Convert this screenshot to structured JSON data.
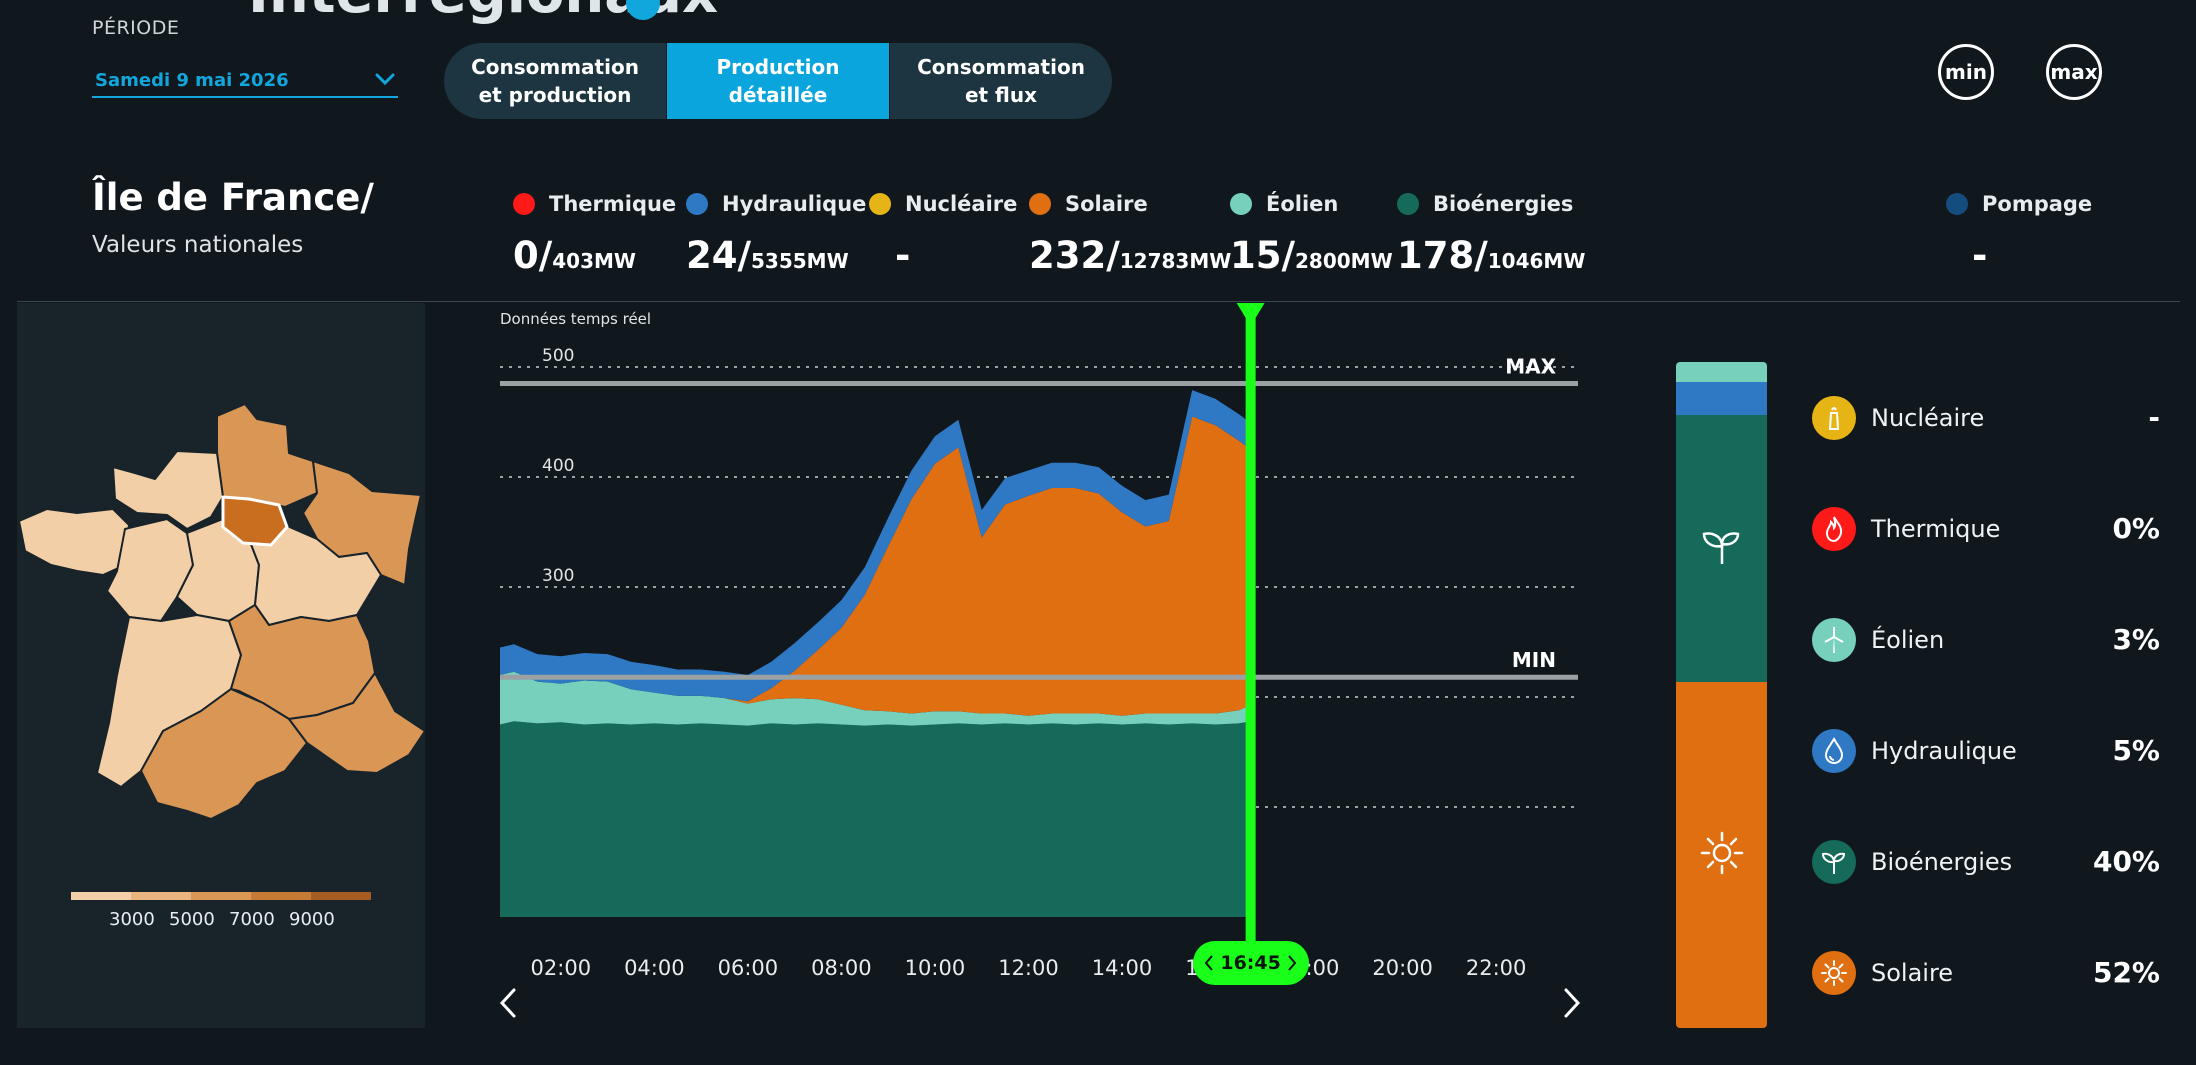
{
  "header": {
    "title": "Interrégionaux",
    "periode_label": "PÉRIODE",
    "date_value": "Samedi 9 mai 2026",
    "tabs": [
      {
        "label": "Consommation et production",
        "active": false
      },
      {
        "label": "Production détaillée",
        "active": true
      },
      {
        "label": "Consommation et flux",
        "active": false
      }
    ],
    "min_button": "min",
    "max_button": "max"
  },
  "region": {
    "name": "Île de France/",
    "subtitle": "Valeurs nationales"
  },
  "stats": [
    {
      "label": "Thermique",
      "value": "0/",
      "capacity": "403MW",
      "color": "#ff1a1a"
    },
    {
      "label": "Hydraulique",
      "value": "24/",
      "capacity": "5355MW",
      "color": "#2f78c4"
    },
    {
      "label": "Nucléaire",
      "value": "-",
      "capacity": "",
      "color": "#e7b416"
    },
    {
      "label": "Solaire",
      "value": "232/",
      "capacity": "12783MW",
      "color": "#e06f12"
    },
    {
      "label": "Éolien",
      "value": "15/",
      "capacity": "2800MW",
      "color": "#76d0bb"
    },
    {
      "label": "Bioénergies",
      "value": "178/",
      "capacity": "1046MW",
      "color": "#166a59"
    },
    {
      "label": "Pompage",
      "value": "-",
      "capacity": "",
      "color": "#154c7e"
    }
  ],
  "map_legend": {
    "ticks": [
      "3000",
      "5000",
      "7000",
      "9000"
    ],
    "colors": [
      "#f2cfa6",
      "#e8b47f",
      "#d99655",
      "#c77a36",
      "#a65d23"
    ]
  },
  "chart_note": "Données temps réel",
  "current_time": "16:45",
  "chart_data": {
    "type": "area",
    "ylim": [
      0,
      500
    ],
    "y_ticks": [
      "100",
      "200",
      "300",
      "400",
      "500"
    ],
    "x_range": [
      0.7,
      23.75
    ],
    "x_ticks": [
      "02:00",
      "04:00",
      "06:00",
      "08:00",
      "10:00",
      "12:00",
      "14:00",
      "16:00",
      "18:00",
      "20:00",
      "22:00"
    ],
    "x": [
      0.7,
      1,
      1.5,
      2,
      2.5,
      3,
      3.5,
      4,
      4.5,
      5,
      5.5,
      6,
      6.5,
      7,
      7.5,
      8,
      8.5,
      9,
      9.5,
      10,
      10.5,
      11,
      11.5,
      12,
      12.5,
      13,
      13.5,
      14,
      14.5,
      15,
      15.5,
      16,
      16.5,
      16.75
    ],
    "series": [
      {
        "name": "Bioénergies",
        "color": "#166a59",
        "values": [
          175,
          178,
          176,
          177,
          175,
          176,
          175,
          176,
          175,
          176,
          175,
          174,
          176,
          175,
          176,
          175,
          174,
          175,
          174,
          175,
          176,
          175,
          176,
          175,
          176,
          175,
          176,
          175,
          176,
          175,
          176,
          175,
          176,
          178
        ]
      },
      {
        "name": "Éolien",
        "color": "#76d0bb",
        "values": [
          45,
          45,
          38,
          35,
          40,
          38,
          32,
          28,
          26,
          25,
          24,
          20,
          22,
          24,
          22,
          18,
          14,
          12,
          11,
          12,
          11,
          10,
          9,
          8,
          9,
          10,
          9,
          8,
          9,
          10,
          9,
          10,
          12,
          15
        ]
      },
      {
        "name": "Solaire",
        "color": "#e06f12",
        "values": [
          0,
          0,
          0,
          0,
          0,
          0,
          0,
          0,
          0,
          0,
          0,
          2,
          10,
          25,
          45,
          70,
          105,
          150,
          195,
          225,
          240,
          160,
          190,
          200,
          205,
          205,
          200,
          185,
          170,
          175,
          270,
          262,
          245,
          232
        ]
      },
      {
        "name": "Hydraulique",
        "color": "#2f78c4",
        "values": [
          25,
          25,
          25,
          25,
          25,
          25,
          25,
          25,
          24,
          24,
          24,
          24,
          24,
          25,
          25,
          25,
          25,
          26,
          26,
          25,
          25,
          25,
          24,
          23,
          23,
          23,
          24,
          24,
          24,
          24,
          24,
          24,
          24,
          24
        ]
      }
    ],
    "threshold_lines": [
      {
        "label": "MAX",
        "value": 485
      },
      {
        "label": "MIN",
        "value": 218
      }
    ]
  },
  "mix": {
    "stack": [
      {
        "name": "Éolien",
        "percent": 3,
        "color": "#76d0bb"
      },
      {
        "name": "Hydraulique",
        "percent": 5,
        "color": "#2f78c4"
      },
      {
        "name": "Bioénergies",
        "percent": 40,
        "color": "#166a59",
        "icon": "sprout-icon"
      },
      {
        "name": "Solaire",
        "percent": 52,
        "color": "#e06f12",
        "icon": "sun-icon"
      }
    ],
    "rows": [
      {
        "name": "Nucléaire",
        "value": "-",
        "color": "#e7b416",
        "icon": "nuclear-icon"
      },
      {
        "name": "Thermique",
        "value": "0%",
        "color": "#ff1a1a",
        "icon": "flame-icon"
      },
      {
        "name": "Éolien",
        "value": "3%",
        "color": "#76d0bb",
        "icon": "wind-turbine-icon"
      },
      {
        "name": "Hydraulique",
        "value": "5%",
        "color": "#2f78c4",
        "icon": "water-drop-icon"
      },
      {
        "name": "Bioénergies",
        "value": "40%",
        "color": "#166a59",
        "icon": "sprout-icon"
      },
      {
        "name": "Solaire",
        "value": "52%",
        "color": "#e06f12",
        "icon": "sun-icon"
      }
    ]
  }
}
